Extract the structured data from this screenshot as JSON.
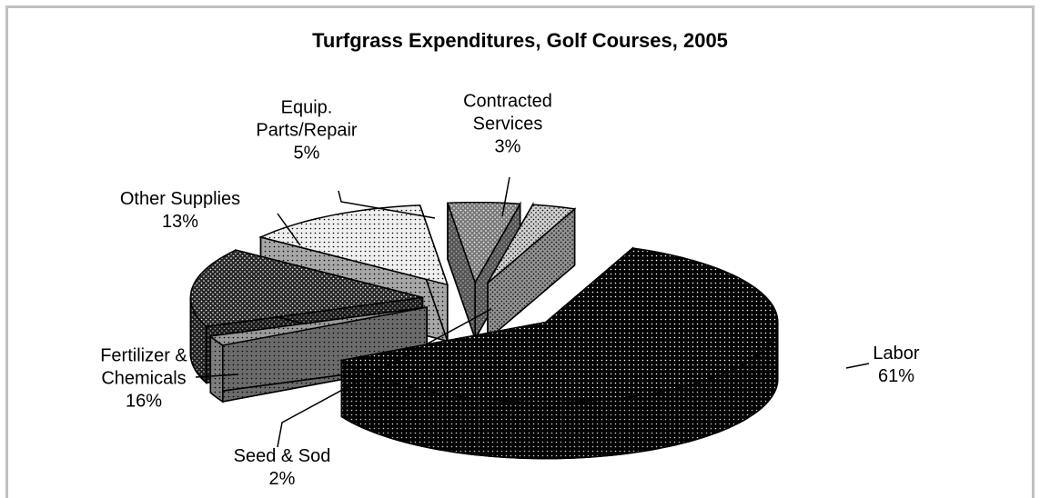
{
  "chart_data": {
    "type": "pie3d",
    "title": "Turfgrass Expenditures, Golf Courses, 2005",
    "categories": [
      "Labor",
      "Seed & Sod",
      "Fertilizer & Chemicals",
      "Other Supplies",
      "Equip. Parts/Repair",
      "Contracted Services"
    ],
    "values": [
      61,
      2,
      16,
      13,
      5,
      3
    ],
    "value_labels": [
      "61%",
      "2%",
      "16%",
      "13%",
      "5%",
      "3%"
    ],
    "colors": [
      "#000000",
      "#9a9a9a",
      "#262626",
      "#efefef",
      "#7a7a7a",
      "#cfcfcf"
    ]
  }
}
